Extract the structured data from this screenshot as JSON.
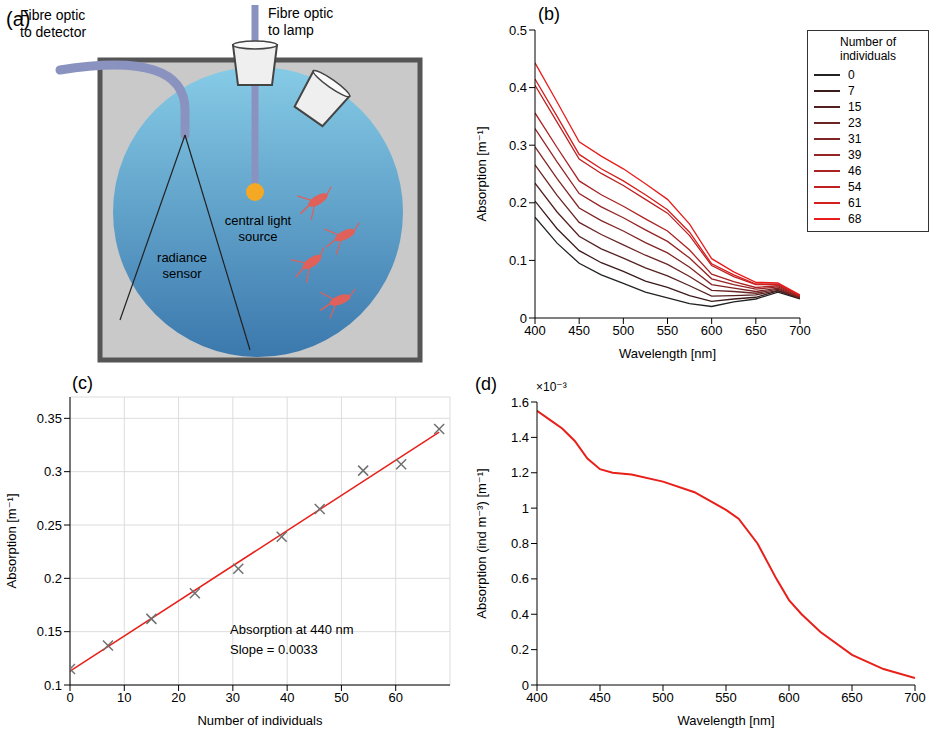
{
  "chart_data": [
    {
      "type": "diagram",
      "panel": "(a)",
      "labels": {
        "detector_fibre": "Fibre optic to detector",
        "lamp_fibre": "Fibre optic to lamp",
        "sensor": "radiance sensor",
        "source": "central light source"
      }
    },
    {
      "type": "line",
      "panel": "(b)",
      "x_label": "Wavelength [nm]",
      "y_label": "Absorption [m⁻¹]",
      "legend_title": "Number of individuals",
      "legend": "right",
      "grid": false,
      "xlim": [
        400,
        700
      ],
      "xticks": [
        400,
        450,
        500,
        550,
        600,
        650,
        700
      ],
      "ylim": [
        0,
        0.5
      ],
      "yticks": [
        0,
        0.1,
        0.2,
        0.3,
        0.4,
        0.5
      ],
      "x": [
        400,
        425,
        450,
        475,
        500,
        525,
        550,
        575,
        600,
        625,
        650,
        675,
        700
      ],
      "series": [
        {
          "name": "0",
          "color": "#222222",
          "values": [
            0.175,
            0.13,
            0.095,
            0.075,
            0.06,
            0.045,
            0.035,
            0.025,
            0.02,
            0.028,
            0.033,
            0.045,
            0.033
          ]
        },
        {
          "name": "7",
          "color": "#3b1a1a",
          "values": [
            0.203,
            0.155,
            0.117,
            0.096,
            0.081,
            0.064,
            0.053,
            0.039,
            0.029,
            0.033,
            0.036,
            0.047,
            0.034
          ]
        },
        {
          "name": "15",
          "color": "#552020",
          "values": [
            0.234,
            0.184,
            0.142,
            0.12,
            0.104,
            0.087,
            0.073,
            0.056,
            0.038,
            0.039,
            0.04,
            0.048,
            0.035
          ]
        },
        {
          "name": "23",
          "color": "#6b2424",
          "values": [
            0.266,
            0.213,
            0.166,
            0.145,
            0.127,
            0.109,
            0.093,
            0.072,
            0.048,
            0.046,
            0.043,
            0.05,
            0.035
          ]
        },
        {
          "name": "31",
          "color": "#802424",
          "values": [
            0.297,
            0.242,
            0.191,
            0.169,
            0.151,
            0.131,
            0.113,
            0.088,
            0.058,
            0.052,
            0.046,
            0.052,
            0.036
          ]
        },
        {
          "name": "39",
          "color": "#952424",
          "values": [
            0.329,
            0.271,
            0.216,
            0.193,
            0.174,
            0.153,
            0.133,
            0.104,
            0.068,
            0.058,
            0.05,
            0.054,
            0.037
          ]
        },
        {
          "name": "46",
          "color": "#aa2222",
          "values": [
            0.356,
            0.296,
            0.238,
            0.214,
            0.194,
            0.172,
            0.151,
            0.118,
            0.076,
            0.063,
            0.053,
            0.056,
            0.038
          ]
        },
        {
          "name": "54",
          "color": "#bf2020",
          "values": [
            0.404,
            0.34,
            0.276,
            0.251,
            0.23,
            0.206,
            0.182,
            0.143,
            0.091,
            0.072,
            0.058,
            0.058,
            0.039
          ]
        },
        {
          "name": "61",
          "color": "#d41e1e",
          "values": [
            0.415,
            0.35,
            0.284,
            0.259,
            0.238,
            0.214,
            0.188,
            0.149,
            0.094,
            0.075,
            0.059,
            0.059,
            0.039
          ]
        },
        {
          "name": "68",
          "color": "#e81c1c",
          "values": [
            0.443,
            0.375,
            0.306,
            0.281,
            0.259,
            0.233,
            0.206,
            0.163,
            0.103,
            0.08,
            0.062,
            0.061,
            0.04
          ]
        }
      ]
    },
    {
      "type": "scatter",
      "panel": "(c)",
      "x_label": "Number of individuals",
      "y_label": "Absorption [m⁻¹]",
      "grid": true,
      "xlim": [
        0,
        70
      ],
      "xticks": [
        0,
        10,
        20,
        30,
        40,
        50,
        60
      ],
      "ylim": [
        0.1,
        0.37
      ],
      "yticks": [
        0.1,
        0.15,
        0.2,
        0.25,
        0.3,
        0.35
      ],
      "x": [
        0,
        7,
        15,
        23,
        31,
        39,
        46,
        54,
        61,
        68
      ],
      "values": [
        0.115,
        0.137,
        0.162,
        0.186,
        0.209,
        0.239,
        0.265,
        0.301,
        0.307,
        0.34
      ],
      "color": "#707070",
      "marker": "x",
      "fit": {
        "x": [
          0,
          68
        ],
        "values": [
          0.113,
          0.337
        ],
        "color": "#e8201a"
      },
      "annotations": [
        "Absorption at 440 nm",
        "Slope = 0.0033"
      ]
    },
    {
      "type": "line",
      "panel": "(d)",
      "x_label": "Wavelength [nm]",
      "y_label": "Absorption (ind m⁻³) [m⁻¹]",
      "y_multiplier": "×10⁻³",
      "grid": false,
      "color": "#e8201a",
      "xlim": [
        400,
        700
      ],
      "xticks": [
        400,
        450,
        500,
        550,
        600,
        650,
        700
      ],
      "ylim": [
        0,
        1.6
      ],
      "yticks": [
        0,
        0.2,
        0.4,
        0.6,
        0.8,
        1,
        1.2,
        1.4,
        1.6
      ],
      "x": [
        400,
        410,
        420,
        430,
        440,
        450,
        460,
        475,
        500,
        525,
        550,
        560,
        575,
        590,
        600,
        610,
        625,
        650,
        675,
        700
      ],
      "values": [
        1.55,
        1.5,
        1.45,
        1.38,
        1.28,
        1.22,
        1.2,
        1.19,
        1.15,
        1.09,
        0.99,
        0.94,
        0.8,
        0.6,
        0.48,
        0.4,
        0.3,
        0.17,
        0.09,
        0.04
      ]
    }
  ]
}
